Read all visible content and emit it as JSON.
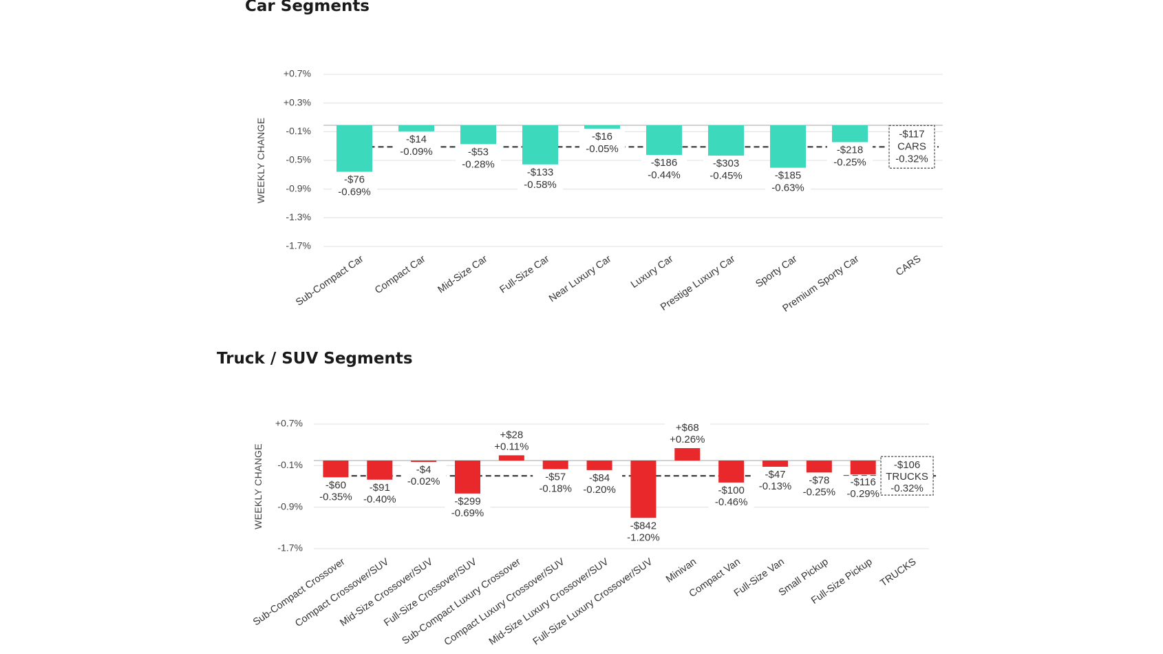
{
  "page": {
    "car_section_title": "Car Segments",
    "truck_section_title": "Truck / SUV Segments"
  },
  "chart_data": [
    {
      "type": "bar",
      "title": "Car Segments",
      "xlabel": "",
      "ylabel": "WEEKLY CHANGE",
      "ylim": [
        -1.7,
        0.7
      ],
      "y_ticks": [
        "+0.7%",
        "+0.3%",
        "-0.1%",
        "-0.5%",
        "-0.9%",
        "-1.3%",
        "-1.7%"
      ],
      "y_tick_values": [
        0.7,
        0.3,
        -0.1,
        -0.5,
        -0.9,
        -1.3,
        -1.7
      ],
      "grid": true,
      "bar_color": "#3dd9bd",
      "categories": [
        "Sub-Compact Car",
        "Compact Car",
        "Mid-Size Car",
        "Full-Size Car",
        "Near Luxury Car",
        "Luxury Car",
        "Prestige Luxury Car",
        "Sporty Car",
        "Premium Sporty Car",
        "CARS"
      ],
      "values": [
        -0.69,
        -0.09,
        -0.28,
        -0.58,
        -0.05,
        -0.44,
        -0.45,
        -0.63,
        -0.25,
        null
      ],
      "dollar_labels": [
        "-$76",
        "-$14",
        "-$53",
        "-$133",
        "-$16",
        "-$186",
        "-$303",
        "-$185",
        "-$218",
        "-$117"
      ],
      "percent_labels": [
        "-0.69%",
        "-0.09%",
        "-0.28%",
        "-0.58%",
        "-0.05%",
        "-0.44%",
        "-0.45%",
        "-0.63%",
        "-0.25%",
        "-0.32%"
      ],
      "average": {
        "label": "CARS",
        "dollar": "-$117",
        "percent": "-0.32%",
        "value": -0.32
      }
    },
    {
      "type": "bar",
      "title": "Truck / SUV Segments",
      "xlabel": "",
      "ylabel": "WEEKLY CHANGE",
      "ylim": [
        -1.7,
        0.7
      ],
      "y_ticks": [
        "+0.7%",
        "-0.1%",
        "-0.9%",
        "-1.7%"
      ],
      "y_tick_values": [
        0.7,
        -0.1,
        -0.9,
        -1.7
      ],
      "grid": true,
      "bar_color": "#e8282b",
      "categories": [
        "Sub-Compact Crossover",
        "Compact Crossover/SUV",
        "Mid-Size Crossover/SUV",
        "Full-Size Crossover/SUV",
        "Sub-Compact Luxury Crossover",
        "Compact Luxury Crossover/SUV",
        "Mid-Size Luxury Crossover/SUV",
        "Full-Size Luxury Crossover/SUV",
        "Minivan",
        "Compact Van",
        "Full-Size Van",
        "Small Pickup",
        "Full-Size Pickup",
        "TRUCKS"
      ],
      "values": [
        -0.35,
        -0.4,
        -0.02,
        -0.69,
        0.11,
        -0.18,
        -0.2,
        -1.2,
        0.26,
        -0.46,
        -0.13,
        -0.25,
        -0.29,
        null
      ],
      "dollar_labels": [
        "-$60",
        "-$91",
        "-$4",
        "-$299",
        "+$28",
        "-$57",
        "-$84",
        "-$842",
        "+$68",
        "-$100",
        "-$47",
        "-$78",
        "-$116",
        "-$106"
      ],
      "percent_labels": [
        "-0.35%",
        "-0.40%",
        "-0.02%",
        "-0.69%",
        "+0.11%",
        "-0.18%",
        "-0.20%",
        "-1.20%",
        "+0.26%",
        "-0.46%",
        "-0.13%",
        "-0.25%",
        "-0.29%",
        "-0.32%"
      ],
      "average": {
        "label": "TRUCKS",
        "dollar": "-$106",
        "percent": "-0.32%",
        "value": -0.32
      }
    }
  ]
}
